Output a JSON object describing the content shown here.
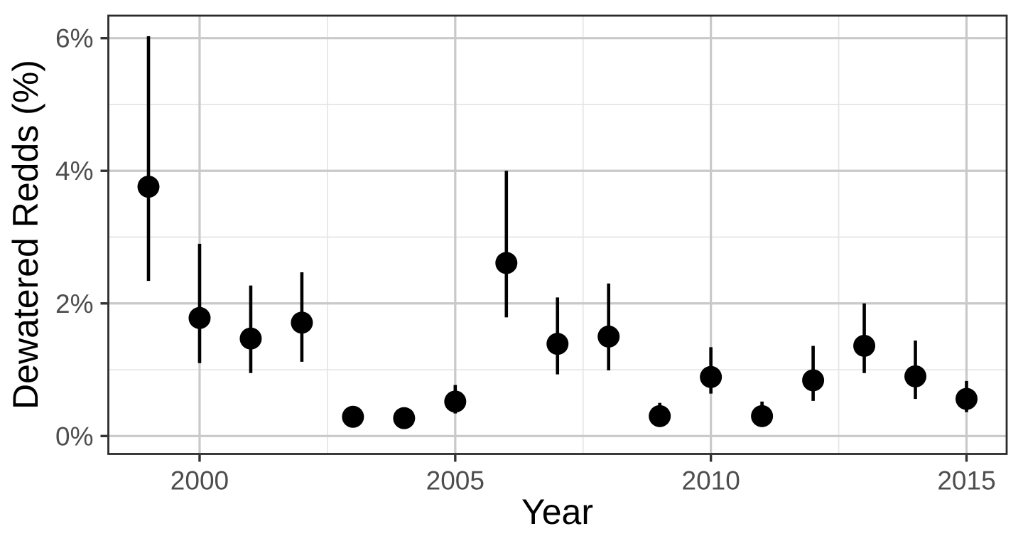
{
  "figure": {
    "background_color": "#FFFFFF",
    "description": "Point-range chart of annual dewatered redds percentage with confidence-interval error bars, 1999-2015"
  },
  "chart_data": {
    "type": "scatter",
    "title": "",
    "xlabel": "Year",
    "ylabel": "Dewatered Redds (%)",
    "x_domain": [
      1998.215,
      2015.785
    ],
    "y_domain": [
      -0.27,
      6.34
    ],
    "x_major_ticks": [
      2000,
      2005,
      2010,
      2015
    ],
    "x_tick_labels": [
      "2000",
      "2005",
      "2010",
      "2015"
    ],
    "x_minor_gridlines": [
      2002.5,
      2007.5,
      2012.5
    ],
    "y_major_ticks": [
      0,
      2,
      4,
      6
    ],
    "y_tick_labels": [
      "0%",
      "2%",
      "4%",
      "6%"
    ],
    "y_minor_gridlines": [
      1,
      3,
      5
    ],
    "grid": true,
    "legend": "none",
    "series": [
      {
        "name": "dewatered-redds-percent",
        "points": [
          {
            "year": 1999,
            "value": 3.76,
            "lower": 2.34,
            "upper": 6.03
          },
          {
            "year": 2000,
            "value": 1.78,
            "lower": 1.1,
            "upper": 2.9
          },
          {
            "year": 2001,
            "value": 1.47,
            "lower": 0.95,
            "upper": 2.27
          },
          {
            "year": 2002,
            "value": 1.71,
            "lower": 1.12,
            "upper": 2.47
          },
          {
            "year": 2003,
            "value": 0.29,
            "lower": 0.21,
            "upper": 0.4
          },
          {
            "year": 2004,
            "value": 0.27,
            "lower": 0.19,
            "upper": 0.38
          },
          {
            "year": 2005,
            "value": 0.52,
            "lower": 0.34,
            "upper": 0.77
          },
          {
            "year": 2006,
            "value": 2.61,
            "lower": 1.79,
            "upper": 4.0
          },
          {
            "year": 2007,
            "value": 1.39,
            "lower": 0.93,
            "upper": 2.09
          },
          {
            "year": 2008,
            "value": 1.5,
            "lower": 0.99,
            "upper": 2.3
          },
          {
            "year": 2009,
            "value": 0.3,
            "lower": 0.18,
            "upper": 0.5
          },
          {
            "year": 2010,
            "value": 0.89,
            "lower": 0.64,
            "upper": 1.34
          },
          {
            "year": 2011,
            "value": 0.3,
            "lower": 0.18,
            "upper": 0.52
          },
          {
            "year": 2012,
            "value": 0.84,
            "lower": 0.53,
            "upper": 1.36
          },
          {
            "year": 2013,
            "value": 1.36,
            "lower": 0.95,
            "upper": 2.0
          },
          {
            "year": 2014,
            "value": 0.9,
            "lower": 0.56,
            "upper": 1.44
          },
          {
            "year": 2015,
            "value": 0.56,
            "lower": 0.36,
            "upper": 0.83
          }
        ]
      }
    ],
    "style": {
      "point_color": "#000000",
      "errorbar_color": "#000000",
      "grid_major_color": "#C9C9C9",
      "grid_minor_color": "#E5E5E5",
      "panel_border_color": "#2B2B2B",
      "tick_color": "#333333",
      "tick_label_color": "#4D4D4D",
      "axis_title_color": "#000000"
    }
  }
}
